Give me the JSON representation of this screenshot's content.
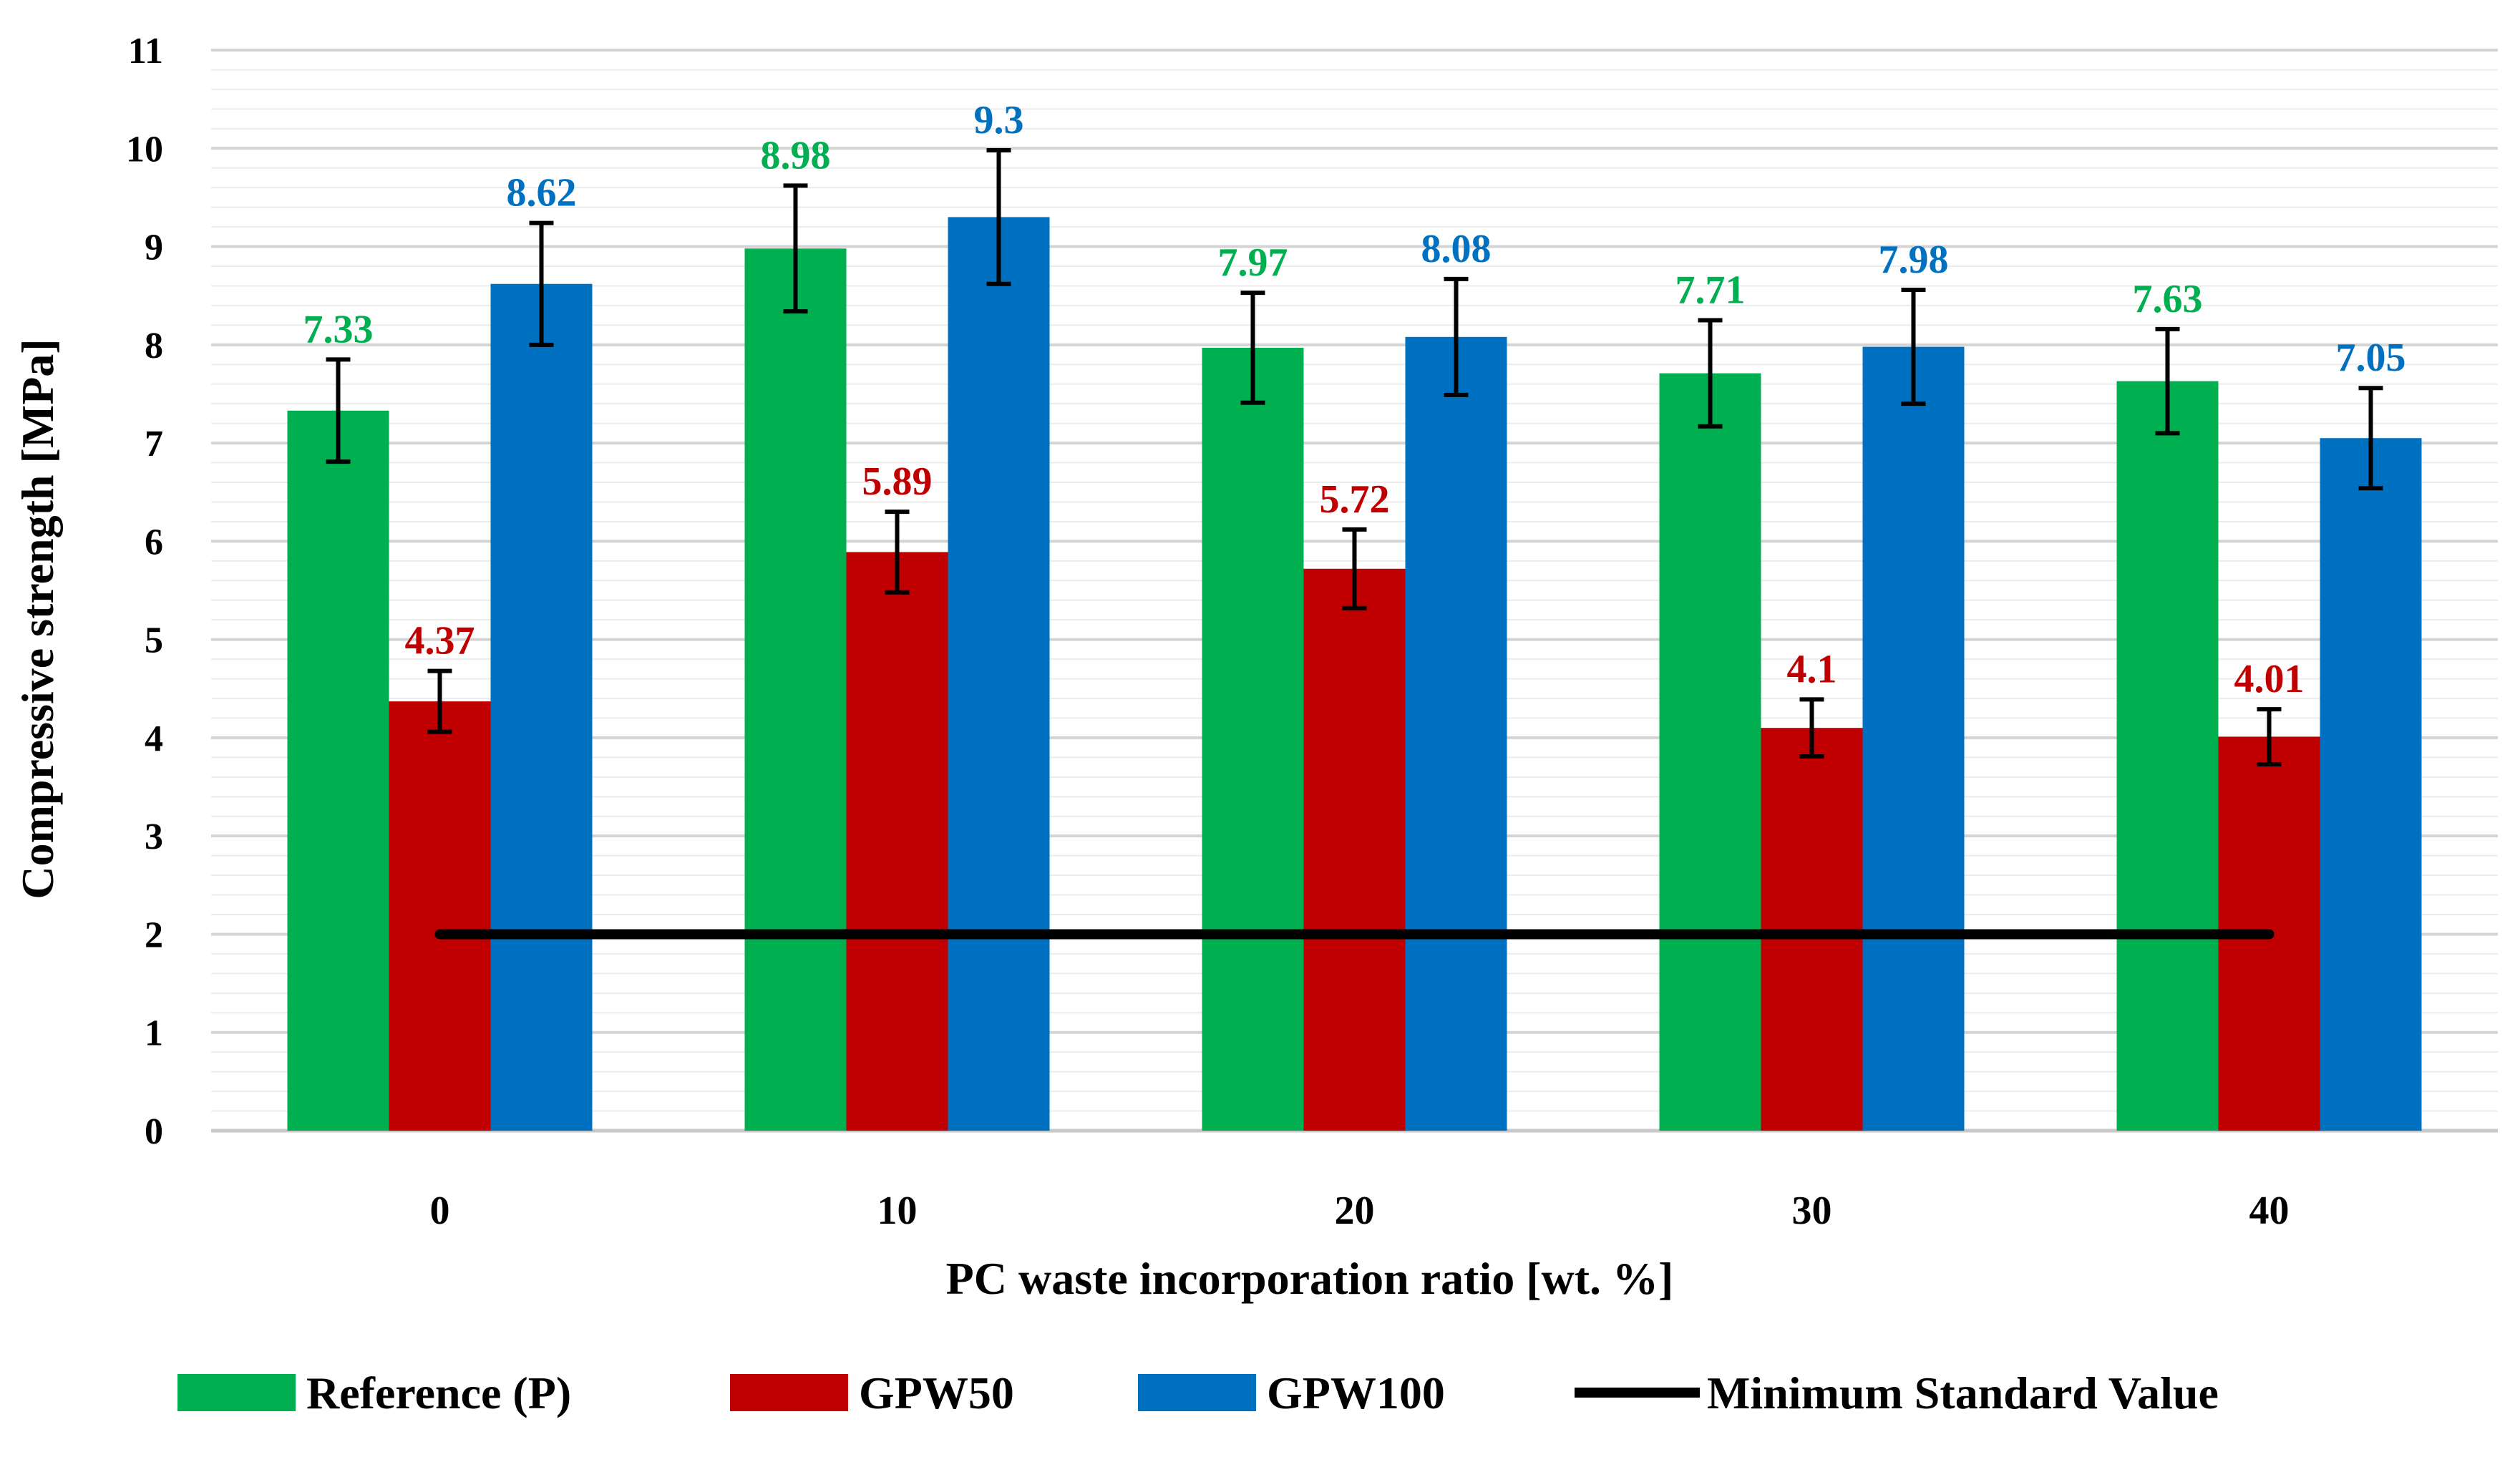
{
  "chart_data": {
    "type": "bar",
    "title": "",
    "xlabel": "PC waste incorporation ratio [wt. %]",
    "ylabel": "Compressive strength [MPa]",
    "ylim": [
      0,
      11
    ],
    "yticks": [
      0,
      1,
      2,
      3,
      4,
      5,
      6,
      7,
      8,
      9,
      10,
      11
    ],
    "grid": "horizontal",
    "legend_position": "bottom",
    "categories": [
      "0",
      "10",
      "20",
      "30",
      "40"
    ],
    "series": [
      {
        "name": "Reference (P)",
        "color": "#00B050",
        "values": [
          7.33,
          8.98,
          7.97,
          7.71,
          7.63
        ],
        "error": [
          0.52,
          0.64,
          0.56,
          0.54,
          0.53
        ],
        "labels": [
          "7.33",
          "8.98",
          "7.97",
          "7.71",
          "7.63"
        ]
      },
      {
        "name": "GPW50",
        "color": "#C00000",
        "values": [
          4.37,
          5.89,
          5.72,
          4.1,
          4.01
        ],
        "error": [
          0.31,
          0.41,
          0.4,
          0.29,
          0.28
        ],
        "labels": [
          "4.37",
          "5.89",
          "5.72",
          "4.1",
          "4.01"
        ]
      },
      {
        "name": "GPW100",
        "color": "#0070C0",
        "values": [
          8.62,
          9.3,
          8.08,
          7.98,
          7.05
        ],
        "error": [
          0.62,
          0.68,
          0.59,
          0.58,
          0.51
        ],
        "labels": [
          "8.62",
          "9.3",
          "8.08",
          "7.98",
          "7.05"
        ]
      }
    ],
    "reference_line": {
      "name": "Minimum Standard Value",
      "value": 2,
      "color": "#000000"
    }
  }
}
